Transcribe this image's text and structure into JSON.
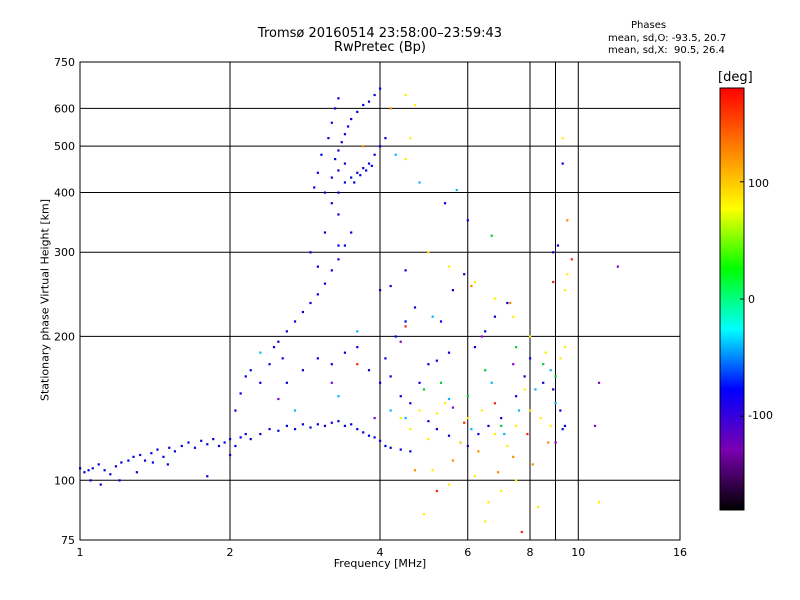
{
  "chart_data": {
    "type": "scatter",
    "title": "Tromsø 20160514 23:58:00–23:59:43",
    "subtitle": "RwPretec (Bp)",
    "xlabel": "Frequency [MHz]",
    "ylabel": "Stationary phase Virtual Height [km]",
    "x_scale": "log",
    "y_scale": "log",
    "xlim": [
      1,
      16
    ],
    "ylim": [
      75,
      750
    ],
    "x_ticks": [
      1,
      2,
      4,
      6,
      8,
      10,
      16
    ],
    "x_minor_ticks": [
      9
    ],
    "y_ticks": [
      75,
      100,
      200,
      300,
      400,
      500,
      600,
      750
    ],
    "grid": true,
    "phase_info": {
      "header": "Phases",
      "line1": "mean, sd,O: -93.5, 20.7",
      "line2": "mean, sd,X:  90.5, 26.4"
    },
    "colorbar": {
      "label": "[deg]",
      "range": [
        -180,
        180
      ],
      "ticks": [
        100,
        0,
        -100
      ],
      "colormap": [
        "#000000",
        "#7a00b0",
        "#0000ff",
        "#00ffff",
        "#00ff00",
        "#ffff00",
        "#ff8000",
        "#ff0000"
      ]
    },
    "series": [
      {
        "color": "#0000dd",
        "points": [
          [
            1.0,
            106
          ],
          [
            1.02,
            104
          ],
          [
            1.04,
            105
          ],
          [
            1.06,
            106
          ],
          [
            1.09,
            108
          ],
          [
            1.12,
            105
          ],
          [
            1.15,
            103
          ],
          [
            1.18,
            107
          ],
          [
            1.21,
            109
          ],
          [
            1.25,
            110
          ],
          [
            1.28,
            112
          ],
          [
            1.32,
            113
          ],
          [
            1.35,
            110
          ],
          [
            1.39,
            114
          ],
          [
            1.43,
            116
          ],
          [
            1.47,
            112
          ],
          [
            1.51,
            117
          ],
          [
            1.55,
            115
          ],
          [
            1.6,
            118
          ],
          [
            1.65,
            120
          ],
          [
            1.7,
            117
          ],
          [
            1.75,
            121
          ],
          [
            1.8,
            119
          ],
          [
            1.85,
            122
          ],
          [
            1.9,
            118
          ],
          [
            1.95,
            120
          ],
          [
            2.0,
            122
          ],
          [
            2.05,
            118
          ],
          [
            2.1,
            123
          ],
          [
            2.15,
            125
          ],
          [
            2.2,
            122
          ],
          [
            2.3,
            125
          ],
          [
            2.4,
            128
          ],
          [
            2.5,
            127
          ],
          [
            2.6,
            130
          ],
          [
            2.7,
            128
          ],
          [
            2.8,
            131
          ],
          [
            2.9,
            129
          ],
          [
            3.0,
            131
          ],
          [
            3.1,
            130
          ],
          [
            3.2,
            132
          ],
          [
            3.3,
            133
          ],
          [
            3.4,
            130
          ],
          [
            3.5,
            131
          ],
          [
            3.6,
            128
          ],
          [
            3.7,
            126
          ],
          [
            3.8,
            124
          ],
          [
            3.9,
            123
          ],
          [
            4.0,
            121
          ],
          [
            4.1,
            118
          ],
          [
            4.2,
            117
          ],
          [
            4.4,
            116
          ],
          [
            4.6,
            115
          ],
          [
            1.05,
            100
          ],
          [
            1.1,
            98
          ],
          [
            1.2,
            100
          ],
          [
            1.3,
            104
          ],
          [
            1.4,
            109
          ],
          [
            1.5,
            108
          ],
          [
            1.8,
            102
          ],
          [
            2.0,
            113
          ],
          [
            2.05,
            140
          ],
          [
            2.1,
            152
          ],
          [
            2.15,
            165
          ],
          [
            2.2,
            170
          ],
          [
            2.3,
            160
          ],
          [
            2.4,
            175
          ],
          [
            2.45,
            190
          ],
          [
            2.5,
            195
          ],
          [
            2.55,
            180
          ],
          [
            2.6,
            205
          ],
          [
            2.7,
            215
          ],
          [
            2.8,
            225
          ],
          [
            2.9,
            235
          ],
          [
            3.0,
            245
          ],
          [
            3.1,
            258
          ],
          [
            3.2,
            275
          ],
          [
            3.3,
            290
          ],
          [
            3.4,
            310
          ],
          [
            3.5,
            330
          ],
          [
            2.6,
            160
          ],
          [
            2.8,
            170
          ],
          [
            3.0,
            180
          ],
          [
            3.2,
            175
          ],
          [
            3.4,
            185
          ],
          [
            3.6,
            190
          ],
          [
            3.8,
            170
          ],
          [
            4.0,
            160
          ],
          [
            4.2,
            165
          ],
          [
            4.4,
            150
          ],
          [
            4.6,
            145
          ],
          [
            4.8,
            160
          ],
          [
            5.0,
            175
          ],
          [
            5.2,
            178
          ],
          [
            5.5,
            185
          ],
          [
            4.1,
            180
          ],
          [
            4.3,
            200
          ],
          [
            4.5,
            215
          ],
          [
            4.7,
            230
          ],
          [
            4.0,
            250
          ],
          [
            4.2,
            255
          ],
          [
            4.5,
            275
          ],
          [
            3.3,
            400
          ],
          [
            3.4,
            420
          ],
          [
            3.5,
            430
          ],
          [
            3.6,
            440
          ],
          [
            3.7,
            450
          ],
          [
            3.8,
            460
          ],
          [
            3.9,
            480
          ],
          [
            4.0,
            500
          ],
          [
            4.1,
            520
          ],
          [
            3.25,
            470
          ],
          [
            3.3,
            490
          ],
          [
            3.35,
            510
          ],
          [
            3.4,
            530
          ],
          [
            3.45,
            550
          ],
          [
            3.5,
            570
          ],
          [
            3.6,
            590
          ],
          [
            3.7,
            610
          ],
          [
            3.8,
            620
          ],
          [
            3.9,
            640
          ],
          [
            4.0,
            660
          ],
          [
            3.55,
            420
          ],
          [
            3.65,
            435
          ],
          [
            3.75,
            445
          ],
          [
            3.85,
            455
          ],
          [
            3.2,
            430
          ],
          [
            3.3,
            445
          ],
          [
            3.4,
            460
          ],
          [
            3.15,
            520
          ],
          [
            3.2,
            560
          ],
          [
            3.25,
            600
          ],
          [
            3.3,
            630
          ],
          [
            3.05,
            480
          ],
          [
            3.0,
            440
          ],
          [
            2.95,
            410
          ],
          [
            3.1,
            400
          ],
          [
            3.2,
            380
          ],
          [
            3.3,
            360
          ],
          [
            2.9,
            300
          ],
          [
            3.0,
            280
          ],
          [
            3.1,
            330
          ],
          [
            3.3,
            310
          ],
          [
            5.0,
            133
          ],
          [
            5.2,
            128
          ],
          [
            5.5,
            124
          ],
          [
            5.8,
            120
          ],
          [
            6.0,
            118
          ],
          [
            6.3,
            125
          ],
          [
            6.6,
            130
          ],
          [
            7.0,
            135
          ],
          [
            7.5,
            150
          ],
          [
            7.8,
            165
          ],
          [
            8.0,
            180
          ],
          [
            8.5,
            160
          ],
          [
            8.9,
            155
          ],
          [
            9.2,
            140
          ],
          [
            9.3,
            128
          ],
          [
            9.4,
            130
          ],
          [
            6.2,
            190
          ],
          [
            6.5,
            205
          ],
          [
            6.8,
            220
          ],
          [
            7.2,
            235
          ],
          [
            5.3,
            215
          ],
          [
            5.6,
            250
          ],
          [
            5.9,
            270
          ],
          [
            8.9,
            300
          ],
          [
            9.1,
            310
          ],
          [
            9.3,
            460
          ],
          [
            5.4,
            380
          ],
          [
            6.0,
            350
          ]
        ]
      },
      {
        "color": "#00b4ff",
        "points": [
          [
            2.3,
            185
          ],
          [
            2.7,
            140
          ],
          [
            3.3,
            150
          ],
          [
            3.6,
            205
          ],
          [
            4.2,
            140
          ],
          [
            4.5,
            135
          ],
          [
            5.1,
            220
          ],
          [
            5.5,
            148
          ],
          [
            6.1,
            128
          ],
          [
            6.7,
            160
          ],
          [
            7.1,
            125
          ],
          [
            7.6,
            140
          ],
          [
            8.2,
            155
          ],
          [
            8.8,
            170
          ],
          [
            9.0,
            145
          ],
          [
            5.7,
            405
          ],
          [
            4.8,
            420
          ],
          [
            4.3,
            480
          ]
        ]
      },
      {
        "color": "#ffee00",
        "points": [
          [
            4.4,
            135
          ],
          [
            4.6,
            128
          ],
          [
            4.8,
            140
          ],
          [
            5.0,
            122
          ],
          [
            5.2,
            138
          ],
          [
            5.4,
            145
          ],
          [
            5.8,
            120
          ],
          [
            6.0,
            135
          ],
          [
            6.4,
            140
          ],
          [
            6.8,
            125
          ],
          [
            7.2,
            118
          ],
          [
            7.5,
            130
          ],
          [
            7.8,
            155
          ],
          [
            8.0,
            140
          ],
          [
            8.4,
            135
          ],
          [
            8.8,
            130
          ],
          [
            9.2,
            180
          ],
          [
            9.4,
            190
          ],
          [
            4.5,
            470
          ],
          [
            4.6,
            520
          ],
          [
            4.7,
            610
          ],
          [
            4.5,
            640
          ],
          [
            5.0,
            300
          ],
          [
            5.5,
            280
          ],
          [
            6.2,
            260
          ],
          [
            6.8,
            240
          ],
          [
            7.4,
            220
          ],
          [
            8.0,
            200
          ],
          [
            8.6,
            185
          ],
          [
            9.3,
            520
          ],
          [
            9.4,
            250
          ],
          [
            9.5,
            270
          ],
          [
            5.1,
            105
          ],
          [
            5.5,
            98
          ],
          [
            6.2,
            102
          ],
          [
            6.6,
            90
          ],
          [
            7.0,
            95
          ],
          [
            7.5,
            100
          ],
          [
            8.3,
            88
          ],
          [
            11.0,
            90
          ],
          [
            4.9,
            85
          ],
          [
            6.5,
            82
          ]
        ]
      },
      {
        "color": "#00cc33",
        "points": [
          [
            5.3,
            160
          ],
          [
            6.0,
            150
          ],
          [
            6.5,
            170
          ],
          [
            7.0,
            130
          ],
          [
            7.5,
            190
          ],
          [
            8.5,
            175
          ],
          [
            9.0,
            165
          ],
          [
            4.9,
            155
          ],
          [
            6.7,
            325
          ]
        ]
      },
      {
        "color": "#ff8800",
        "points": [
          [
            4.7,
            105
          ],
          [
            5.6,
            110
          ],
          [
            6.3,
            115
          ],
          [
            6.9,
            104
          ],
          [
            7.4,
            112
          ],
          [
            8.1,
            108
          ],
          [
            8.7,
            120
          ],
          [
            6.1,
            255
          ],
          [
            7.3,
            235
          ],
          [
            4.2,
            600
          ],
          [
            3.7,
            500
          ],
          [
            9.5,
            350
          ]
        ]
      },
      {
        "color": "#ff2200",
        "points": [
          [
            5.9,
            132
          ],
          [
            6.8,
            145
          ],
          [
            7.9,
            125
          ],
          [
            4.5,
            210
          ],
          [
            3.6,
            175
          ],
          [
            5.2,
            95
          ],
          [
            7.7,
            78
          ],
          [
            9.7,
            290
          ],
          [
            8.9,
            260
          ]
        ]
      },
      {
        "color": "#8800cc",
        "points": [
          [
            2.5,
            148
          ],
          [
            3.2,
            160
          ],
          [
            3.9,
            135
          ],
          [
            4.4,
            195
          ],
          [
            5.6,
            142
          ],
          [
            6.4,
            200
          ],
          [
            7.4,
            175
          ],
          [
            9.0,
            120
          ],
          [
            12.0,
            280
          ],
          [
            11.0,
            160
          ],
          [
            10.8,
            130
          ]
        ]
      }
    ]
  }
}
